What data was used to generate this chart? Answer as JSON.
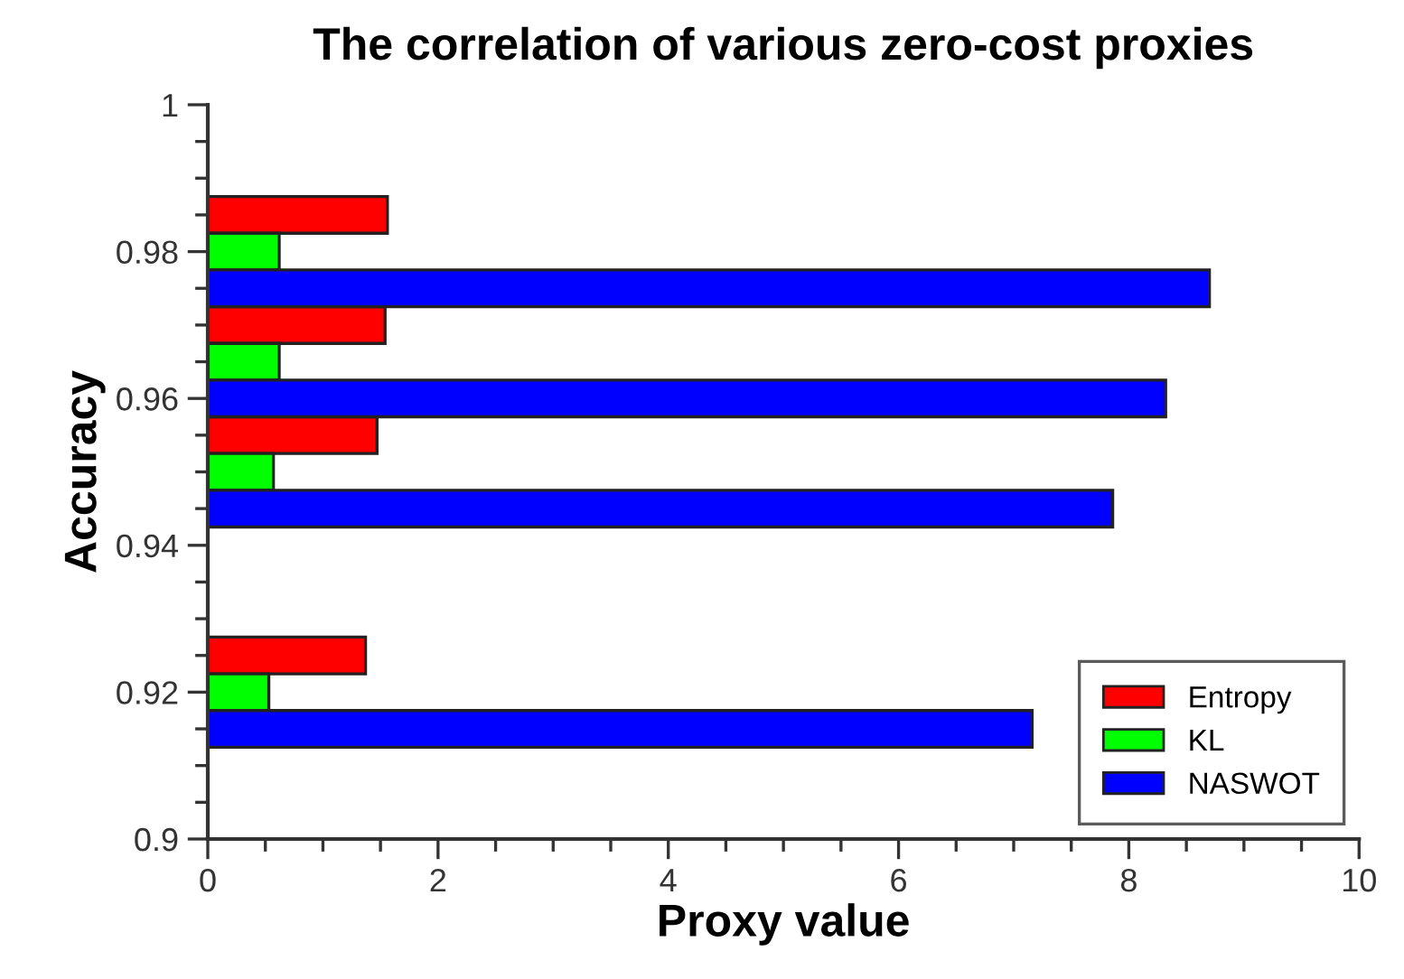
{
  "chart_data": {
    "type": "bar",
    "orientation": "horizontal",
    "title": "The correlation of various zero-cost proxies",
    "xlabel": "Proxy value",
    "ylabel": "Accuracy",
    "x": [
      0.98,
      0.965,
      0.95,
      0.92
    ],
    "series": [
      {
        "name": "Entropy",
        "color": "#ff0000",
        "values": [
          1.56,
          1.54,
          1.47,
          1.37
        ]
      },
      {
        "name": "KL",
        "color": "#00ff00",
        "values": [
          0.62,
          0.62,
          0.57,
          0.53
        ]
      },
      {
        "name": "NASWOT",
        "color": "#0000ff",
        "values": [
          8.7,
          8.32,
          7.86,
          7.16
        ]
      }
    ],
    "xlim": [
      0,
      10
    ],
    "xticks": [
      0,
      2,
      4,
      6,
      8,
      10
    ],
    "ylim": [
      0.9,
      1
    ],
    "yticks": [
      0.9,
      0.92,
      0.94,
      0.96,
      0.98,
      1
    ],
    "grid": false,
    "legend": "bottom right"
  }
}
